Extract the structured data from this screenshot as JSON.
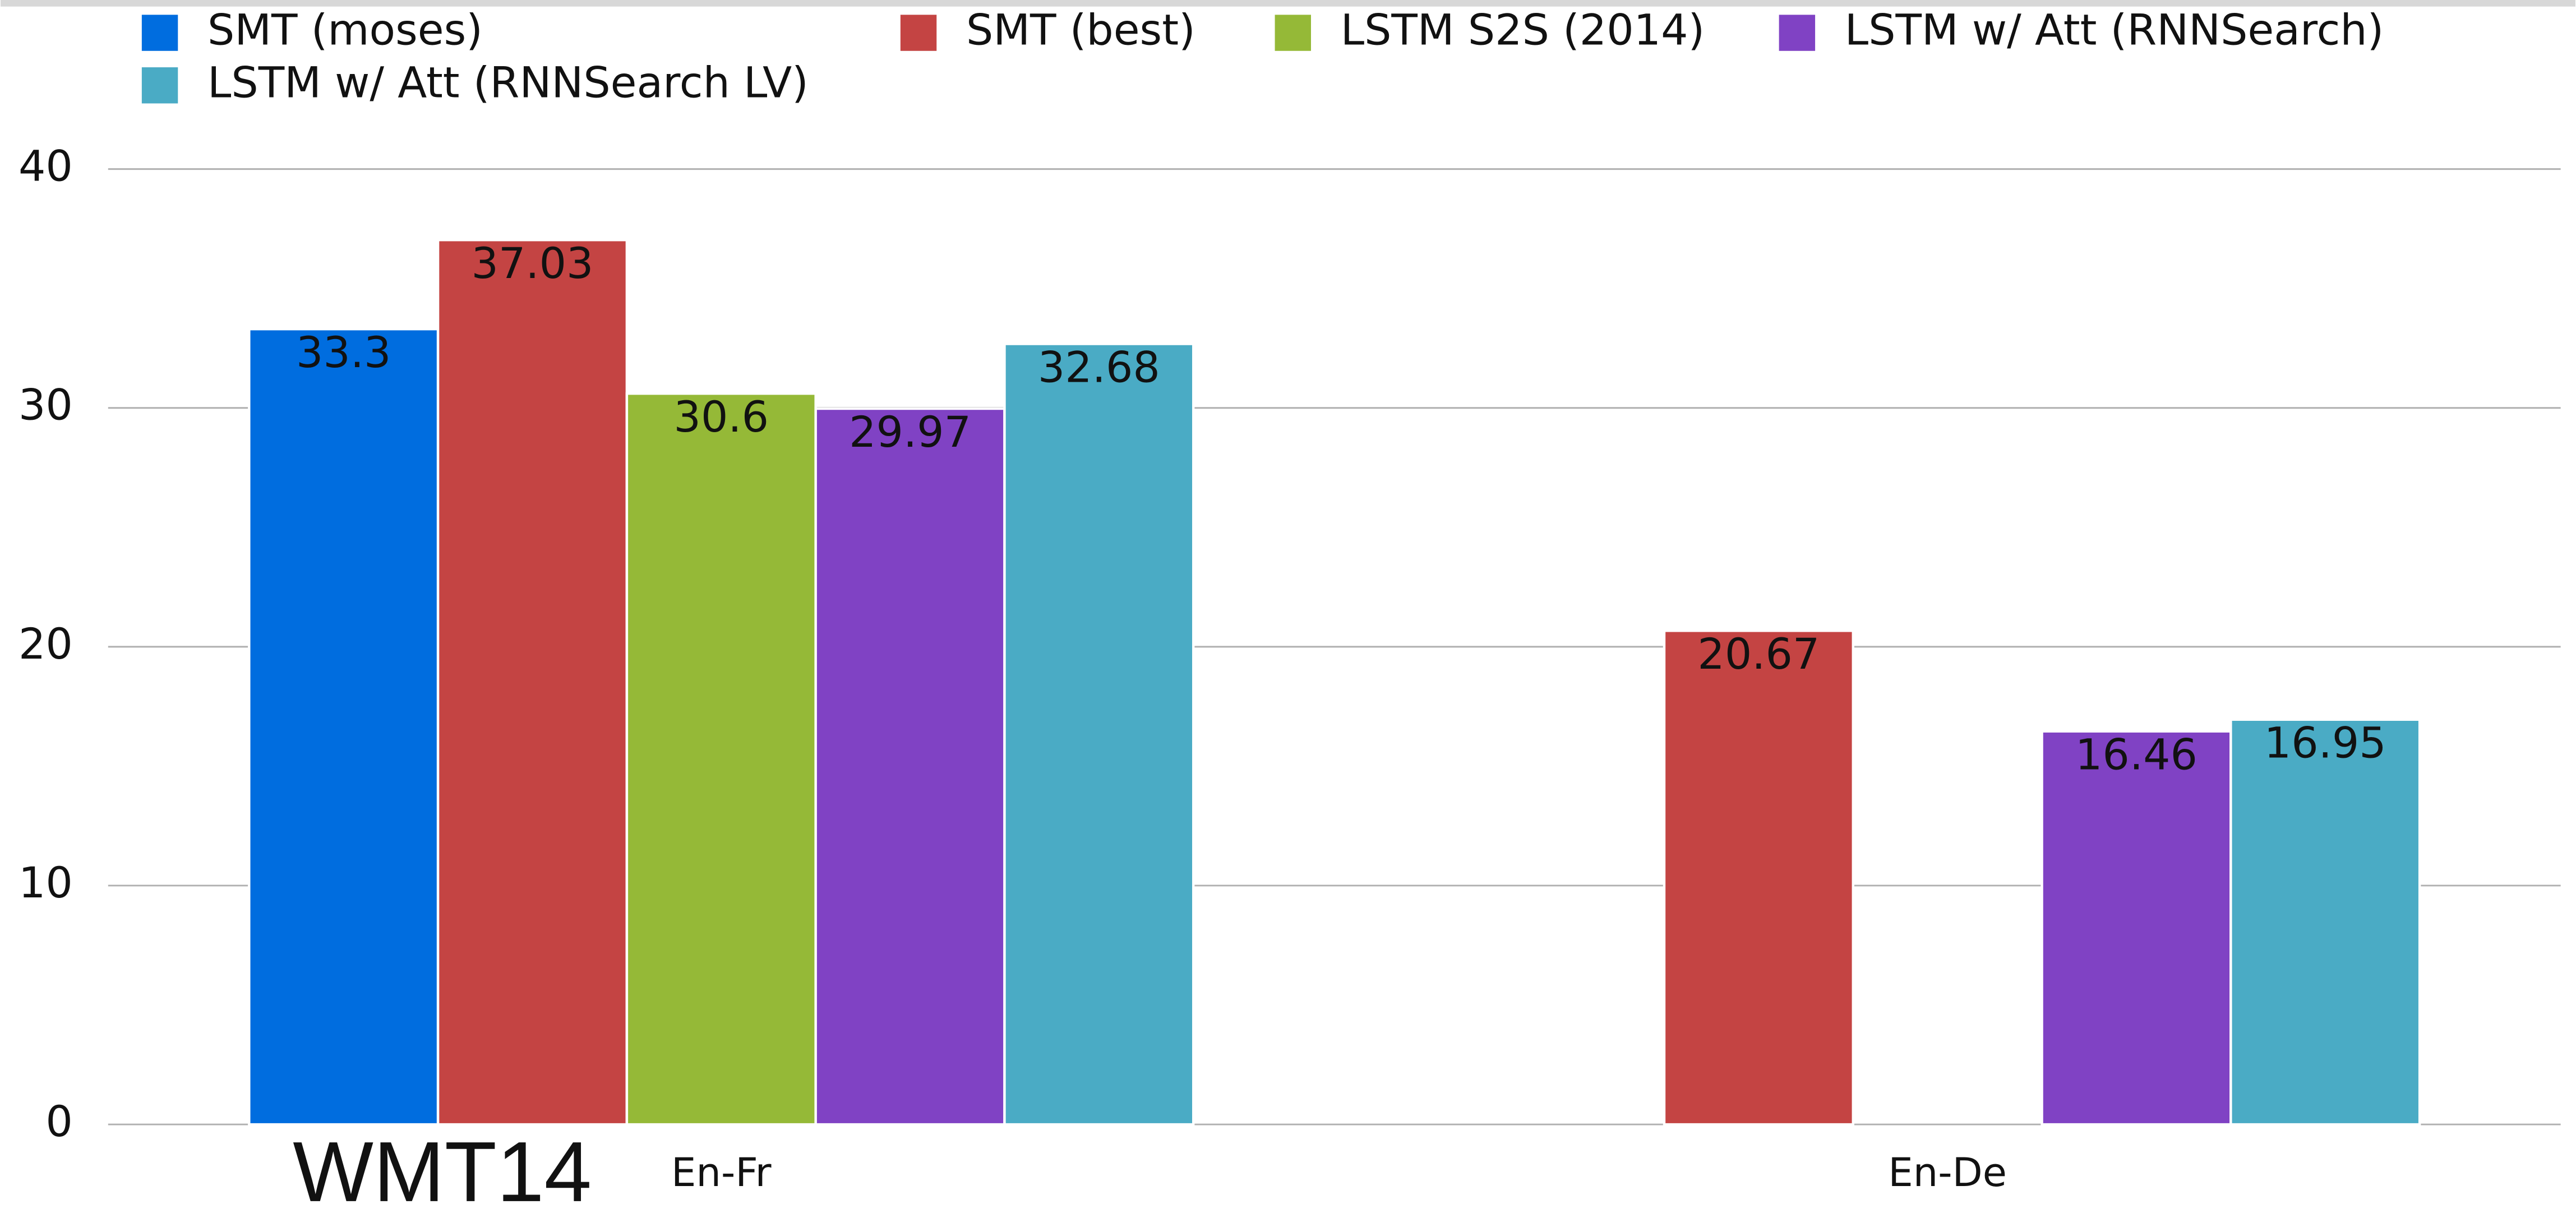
{
  "chart_data": {
    "type": "bar",
    "annotation": "WMT14",
    "categories": [
      "En-Fr",
      "En-De"
    ],
    "series": [
      {
        "name": "SMT (moses)",
        "color": "#006ddf",
        "values": [
          33.3,
          null
        ]
      },
      {
        "name": "SMT (best)",
        "color": "#c44443",
        "values": [
          37.03,
          20.67
        ]
      },
      {
        "name": "LSTM S2S (2014)",
        "color": "#95b937",
        "values": [
          30.6,
          null
        ]
      },
      {
        "name": "LSTM w/ Att (RNNSearch)",
        "color": "#8042c4",
        "values": [
          29.97,
          16.46
        ]
      },
      {
        "name": "LSTM w/ Att (RNNSearch LV)",
        "color": "#4aabc5",
        "values": [
          32.68,
          16.95
        ]
      }
    ],
    "ylim": [
      0,
      40
    ],
    "yticks": [
      0,
      10,
      20,
      30,
      40
    ],
    "grid": true,
    "legend": "top"
  }
}
